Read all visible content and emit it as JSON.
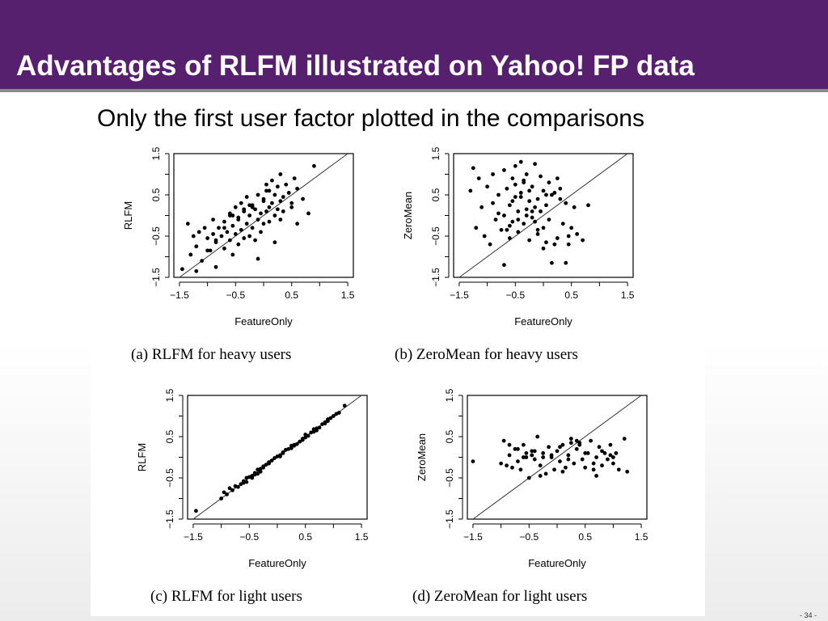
{
  "slide": {
    "title": "Advantages of RLFM illustrated on Yahoo! FP data",
    "subtitle": "Only the first user factor plotted in the comparisons",
    "page_number": "- 34 -",
    "colors": {
      "title_bar": "#56206f",
      "title_text": "#ffffff"
    }
  },
  "chart_data": [
    {
      "type": "scatter",
      "caption": "(a) RLFM for heavy users",
      "xlabel": "FeatureOnly",
      "ylabel": "RLFM",
      "xlim": [
        -1.6,
        1.6
      ],
      "ylim": [
        -1.5,
        1.5
      ],
      "xticks": [
        "-1.5",
        "-0.5",
        "0.5",
        "1.5"
      ],
      "yticks": [
        "-1.5",
        "-0.5",
        "0.5",
        "1.5"
      ],
      "reference_line": "y = x",
      "x": [
        -1.45,
        -1.35,
        -1.3,
        -1.25,
        -1.2,
        -1.2,
        -1.15,
        -1.1,
        -1.05,
        -1.0,
        -0.95,
        -0.9,
        -0.9,
        -0.85,
        -0.85,
        -0.8,
        -0.75,
        -0.7,
        -0.7,
        -0.65,
        -0.6,
        -0.6,
        -0.55,
        -0.55,
        -0.5,
        -0.5,
        -0.45,
        -0.45,
        -0.4,
        -0.4,
        -0.35,
        -0.35,
        -0.3,
        -0.3,
        -0.25,
        -0.25,
        -0.2,
        -0.2,
        -0.15,
        -0.15,
        -0.1,
        -0.1,
        -0.05,
        -0.05,
        0.0,
        0.0,
        0.05,
        0.05,
        0.1,
        0.1,
        0.15,
        0.15,
        0.2,
        0.2,
        0.25,
        0.25,
        0.3,
        0.3,
        0.35,
        0.4,
        0.45,
        0.5,
        0.55,
        0.6,
        0.7,
        0.8,
        0.9,
        -0.7,
        -0.45,
        -0.2,
        0.1,
        0.3,
        -1.0,
        -0.6,
        0.05,
        0.5,
        -0.85,
        -0.35,
        0.2,
        -0.1,
        0.35,
        -0.55,
        0.6,
        -0.25,
        0.0
      ],
      "y": [
        -1.3,
        -0.2,
        -0.95,
        -0.5,
        -1.35,
        -0.75,
        -0.4,
        -1.1,
        -0.3,
        -0.55,
        -0.85,
        -0.1,
        -0.45,
        -1.25,
        -0.65,
        -0.3,
        -0.5,
        -0.15,
        -0.8,
        -0.4,
        0.05,
        -0.6,
        -0.25,
        -0.95,
        0.2,
        -0.45,
        -0.05,
        -0.7,
        0.3,
        -0.35,
        0.1,
        -0.55,
        0.45,
        -0.2,
        0.0,
        -0.5,
        0.25,
        -0.3,
        0.15,
        -0.6,
        0.5,
        -0.1,
        0.05,
        -0.4,
        0.35,
        -0.2,
        0.6,
        0.1,
        0.2,
        -0.15,
        0.85,
        0.3,
        0.5,
        0.0,
        0.7,
        0.15,
        0.35,
        -0.1,
        0.45,
        0.75,
        0.55,
        0.2,
        0.9,
        0.65,
        0.4,
        0.05,
        1.2,
        -0.3,
        -0.1,
        0.2,
        0.6,
        1.0,
        -0.85,
        0.0,
        0.75,
        0.3,
        -0.6,
        0.15,
        -0.65,
        -1.05,
        0.1,
        0.0,
        -0.2,
        0.25,
        0.4
      ]
    },
    {
      "type": "scatter",
      "caption": "(b) ZeroMean for heavy users",
      "xlabel": "FeatureOnly",
      "ylabel": "ZeroMean",
      "xlim": [
        -1.6,
        1.6
      ],
      "ylim": [
        -1.5,
        1.5
      ],
      "xticks": [
        "-1.5",
        "-0.5",
        "0.5",
        "1.5"
      ],
      "yticks": [
        "-1.5",
        "-0.5",
        "0.5",
        "1.5"
      ],
      "reference_line": "y = x",
      "x": [
        -1.3,
        -1.25,
        -1.2,
        -1.15,
        -1.1,
        -1.05,
        -1.0,
        -0.95,
        -0.9,
        -0.9,
        -0.85,
        -0.8,
        -0.75,
        -0.7,
        -0.7,
        -0.65,
        -0.6,
        -0.6,
        -0.55,
        -0.55,
        -0.5,
        -0.5,
        -0.45,
        -0.45,
        -0.4,
        -0.4,
        -0.35,
        -0.35,
        -0.3,
        -0.3,
        -0.25,
        -0.25,
        -0.2,
        -0.2,
        -0.15,
        -0.15,
        -0.1,
        -0.1,
        -0.05,
        -0.05,
        0.0,
        0.0,
        0.05,
        0.05,
        0.1,
        0.15,
        0.2,
        0.25,
        0.3,
        0.35,
        0.4,
        0.45,
        0.5,
        0.55,
        0.6,
        0.7,
        0.8,
        -0.8,
        -0.6,
        -0.4,
        -0.2,
        0.0,
        0.2,
        0.4,
        -0.7,
        -0.5,
        -0.3,
        -0.1,
        0.1,
        0.3,
        -0.55,
        -0.35,
        -0.15,
        0.05,
        -0.45,
        -0.25,
        0.25,
        0.45,
        -0.65,
        0.15
      ],
      "y": [
        0.6,
        1.15,
        -0.3,
        0.9,
        0.2,
        -0.5,
        0.7,
        -0.7,
        1.0,
        0.3,
        -0.1,
        0.5,
        -0.35,
        1.1,
        0.0,
        0.65,
        0.25,
        -0.55,
        0.9,
        -0.15,
        1.2,
        0.45,
        0.1,
        -0.4,
        1.3,
        0.55,
        -0.2,
        0.8,
        1.0,
        0.15,
        -0.6,
        0.35,
        0.7,
        -0.05,
        1.25,
        0.2,
        0.4,
        -0.45,
        0.95,
        0.1,
        0.6,
        -0.3,
        0.25,
        -0.65,
        0.8,
        0.5,
        -0.7,
        0.9,
        0.4,
        -0.2,
        0.3,
        -0.5,
        -0.3,
        0.2,
        -0.45,
        -0.6,
        0.25,
        0.05,
        -0.25,
        0.45,
        0.1,
        -0.8,
        0.55,
        -1.15,
        -1.2,
        0.75,
        0.0,
        -0.35,
        -0.1,
        0.65,
        0.35,
        0.85,
        -0.15,
        0.5,
        -0.1,
        0.6,
        -0.55,
        -0.7,
        -0.35,
        -1.15
      ]
    },
    {
      "type": "scatter",
      "caption": "(c) RLFM for light users",
      "xlabel": "FeatureOnly",
      "ylabel": "RLFM",
      "xlim": [
        -1.6,
        1.6
      ],
      "ylim": [
        -1.5,
        1.5
      ],
      "xticks": [
        "-1.5",
        "-0.5",
        "0.5",
        "1.5"
      ],
      "yticks": [
        "-1.5",
        "-0.5",
        "0.5",
        "1.5"
      ],
      "reference_line": "y = x",
      "x": [
        -1.45,
        -1.0,
        -0.95,
        -0.9,
        -0.85,
        -0.8,
        -0.75,
        -0.7,
        -0.65,
        -0.6,
        -0.55,
        -0.5,
        -0.45,
        -0.4,
        -0.35,
        -0.3,
        -0.25,
        -0.2,
        -0.15,
        -0.1,
        -0.05,
        0.0,
        0.05,
        0.1,
        0.15,
        0.2,
        0.25,
        0.3,
        0.35,
        0.4,
        0.45,
        0.5,
        0.55,
        0.6,
        0.65,
        0.7,
        0.75,
        0.8,
        0.85,
        0.9,
        0.95,
        1.0,
        1.05,
        1.1,
        1.2,
        -0.55,
        -0.45,
        -0.35,
        -0.25,
        -0.15,
        0.05,
        0.25,
        0.45,
        0.65,
        0.85,
        -0.6,
        -0.4,
        -0.3,
        0.1,
        0.3,
        0.5,
        0.7,
        0.9
      ],
      "y": [
        -1.3,
        -1.0,
        -0.85,
        -0.9,
        -0.75,
        -0.8,
        -0.7,
        -0.72,
        -0.65,
        -0.58,
        -0.6,
        -0.48,
        -0.45,
        -0.42,
        -0.3,
        -0.28,
        -0.25,
        -0.18,
        -0.12,
        -0.08,
        -0.02,
        0.02,
        0.05,
        0.1,
        0.18,
        0.2,
        0.22,
        0.3,
        0.32,
        0.38,
        0.45,
        0.48,
        0.52,
        0.6,
        0.62,
        0.7,
        0.72,
        0.8,
        0.85,
        0.88,
        0.95,
        1.0,
        1.05,
        1.08,
        1.25,
        -0.5,
        -0.5,
        -0.4,
        -0.22,
        -0.15,
        0.02,
        0.28,
        0.42,
        0.68,
        0.82,
        -0.62,
        -0.38,
        -0.35,
        0.12,
        0.28,
        0.55,
        0.65,
        0.92
      ]
    },
    {
      "type": "scatter",
      "caption": "(d) ZeroMean for light users",
      "xlabel": "FeatureOnly",
      "ylabel": "ZeroMean",
      "xlim": [
        -1.6,
        1.6
      ],
      "ylim": [
        -1.5,
        1.5
      ],
      "xticks": [
        "-1.5",
        "-0.5",
        "0.5",
        "1.5"
      ],
      "yticks": [
        "-1.5",
        "-0.5",
        "0.5",
        "1.5"
      ],
      "reference_line": "y = x",
      "x": [
        -1.5,
        -1.0,
        -0.95,
        -0.9,
        -0.85,
        -0.8,
        -0.75,
        -0.7,
        -0.65,
        -0.6,
        -0.55,
        -0.5,
        -0.45,
        -0.4,
        -0.35,
        -0.3,
        -0.25,
        -0.2,
        -0.15,
        -0.1,
        -0.05,
        0.0,
        0.05,
        0.1,
        0.15,
        0.2,
        0.25,
        0.3,
        0.35,
        0.4,
        0.45,
        0.5,
        0.55,
        0.6,
        0.65,
        0.7,
        0.75,
        0.8,
        0.85,
        0.9,
        0.95,
        1.0,
        1.05,
        1.1,
        1.2,
        1.25,
        -0.85,
        -0.7,
        -0.55,
        -0.4,
        -0.25,
        -0.1,
        0.05,
        0.2,
        0.35,
        0.5,
        0.65,
        0.8,
        0.95,
        -0.6,
        -0.3,
        0.1,
        0.4,
        0.7,
        1.0,
        -0.45,
        0.25
      ],
      "y": [
        -0.1,
        -0.15,
        0.4,
        -0.2,
        0.05,
        -0.25,
        0.2,
        -0.1,
        -0.3,
        0.3,
        0.0,
        -0.5,
        0.15,
        -0.05,
        0.5,
        -0.2,
        0.1,
        -0.4,
        0.25,
        0.0,
        -0.3,
        0.15,
        -0.1,
        0.3,
        -0.25,
        0.05,
        0.45,
        -0.15,
        0.2,
        0.35,
        -0.05,
        -0.25,
        0.1,
        0.4,
        -0.15,
        0.0,
        0.25,
        -0.2,
        0.1,
        -0.05,
        0.3,
        -0.15,
        0.1,
        -0.3,
        0.45,
        -0.35,
        0.3,
        0.2,
        0.1,
        0.15,
        0.0,
        0.05,
        0.25,
        -0.05,
        0.4,
        0.1,
        -0.3,
        0.15,
        0.05,
        0.0,
        -0.45,
        -0.35,
        0.3,
        -0.45,
        0.0,
        0.05,
        0.35
      ]
    }
  ]
}
